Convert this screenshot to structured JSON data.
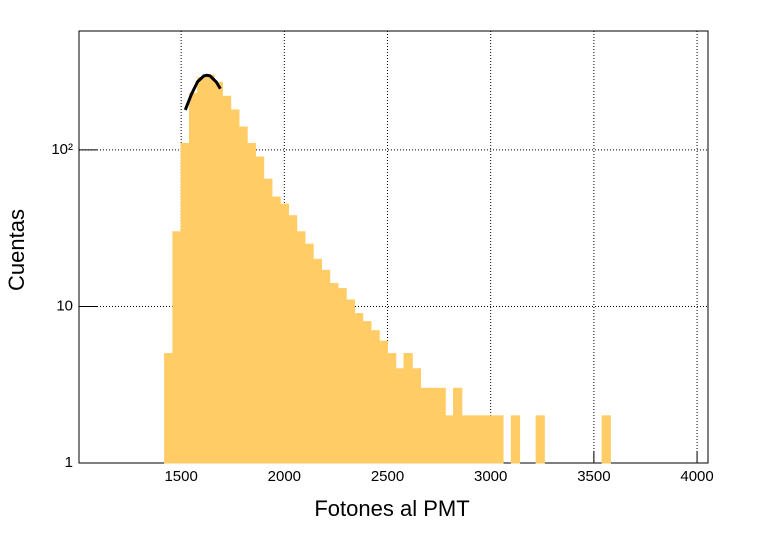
{
  "chart_data": {
    "type": "histogram",
    "x_label": "Fotones al PMT",
    "y_label": "Cuentas",
    "bins": [
      1380,
      1420,
      1460,
      1500,
      1540,
      1580,
      1620,
      1660,
      1700,
      1740,
      1780,
      1820,
      1860,
      1900,
      1940,
      1980,
      2020,
      2060,
      2100,
      2140,
      2180,
      2220,
      2260,
      2300,
      2340,
      2380,
      2420,
      2460,
      2500,
      2540,
      2580,
      2620,
      2660,
      2700,
      2740,
      2780,
      2820,
      2860,
      2900,
      2940,
      2980,
      3020,
      3060,
      3100,
      3140,
      3180,
      3220,
      3260,
      3300,
      3340,
      3380,
      3420,
      3460,
      3500,
      3540,
      3580,
      3620,
      3660,
      3700,
      3740,
      3780,
      3820,
      3860,
      3900,
      3940
    ],
    "values": [
      1,
      5,
      30,
      110,
      230,
      290,
      300,
      270,
      220,
      180,
      140,
      110,
      90,
      65,
      50,
      45,
      38,
      30,
      25,
      20,
      17,
      14,
      13,
      11,
      9,
      8,
      7,
      6,
      5,
      4,
      5,
      4,
      3,
      3,
      3,
      2,
      3,
      2,
      2,
      2,
      2,
      2,
      1,
      2,
      1,
      1,
      2,
      1,
      1,
      1,
      1,
      1,
      1,
      1,
      2,
      1,
      1,
      1,
      1,
      1,
      1,
      1,
      1,
      1
    ],
    "color": "#ffcc66",
    "fit": {
      "x": [
        1520,
        1550,
        1580,
        1610,
        1625,
        1640,
        1670,
        1690
      ],
      "y": [
        180,
        227,
        273,
        297,
        300,
        297,
        272,
        246
      ],
      "color": "#000000"
    },
    "xlim": [
      1005,
      4053
    ],
    "xticks": [
      1500,
      2000,
      2500,
      3000,
      3500,
      4000
    ],
    "ylim": [
      1,
      575
    ],
    "ylog": true,
    "yticks": [
      1,
      10,
      {
        "value": 100,
        "label": "10²"
      }
    ],
    "grid": true
  }
}
